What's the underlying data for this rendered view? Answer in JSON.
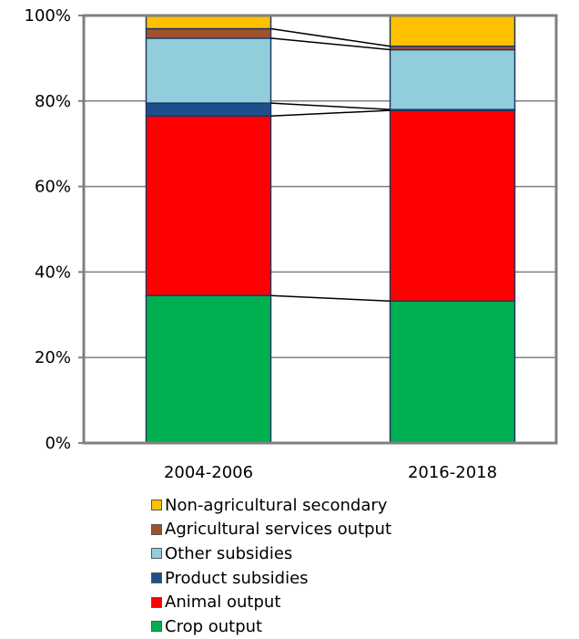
{
  "chart_data": {
    "type": "bar",
    "stacked": true,
    "percent": true,
    "categories": [
      "2004-2006",
      "2016-2018"
    ],
    "ylim": [
      0,
      100
    ],
    "yticks": [
      "0%",
      "20%",
      "40%",
      "60%",
      "80%",
      "100%"
    ],
    "ytick_values": [
      0,
      20,
      40,
      60,
      80,
      100
    ],
    "series": [
      {
        "name": "Crop output",
        "color": "#00b050",
        "values": [
          34.5,
          33.2
        ]
      },
      {
        "name": "Animal output",
        "color": "#ff0000",
        "values": [
          42.0,
          44.6
        ]
      },
      {
        "name": "Product subsidies",
        "color": "#1f4e8c",
        "values": [
          3.0,
          0.2
        ]
      },
      {
        "name": "Other subsidies",
        "color": "#92cddc",
        "values": [
          15.2,
          14.0
        ]
      },
      {
        "name": "Agricultural services output",
        "color": "#a0522d",
        "values": [
          2.2,
          0.8
        ]
      },
      {
        "name": "Non-agricultural secondary",
        "color": "#ffc000",
        "values": [
          3.1,
          7.2
        ]
      }
    ],
    "legend_order": [
      "Non-agricultural secondary",
      "Agricultural services output",
      "Other subsidies",
      "Product subsidies",
      "Animal output",
      "Crop output"
    ],
    "legend_position": "bottom",
    "grid": true,
    "connector_lines": true
  }
}
